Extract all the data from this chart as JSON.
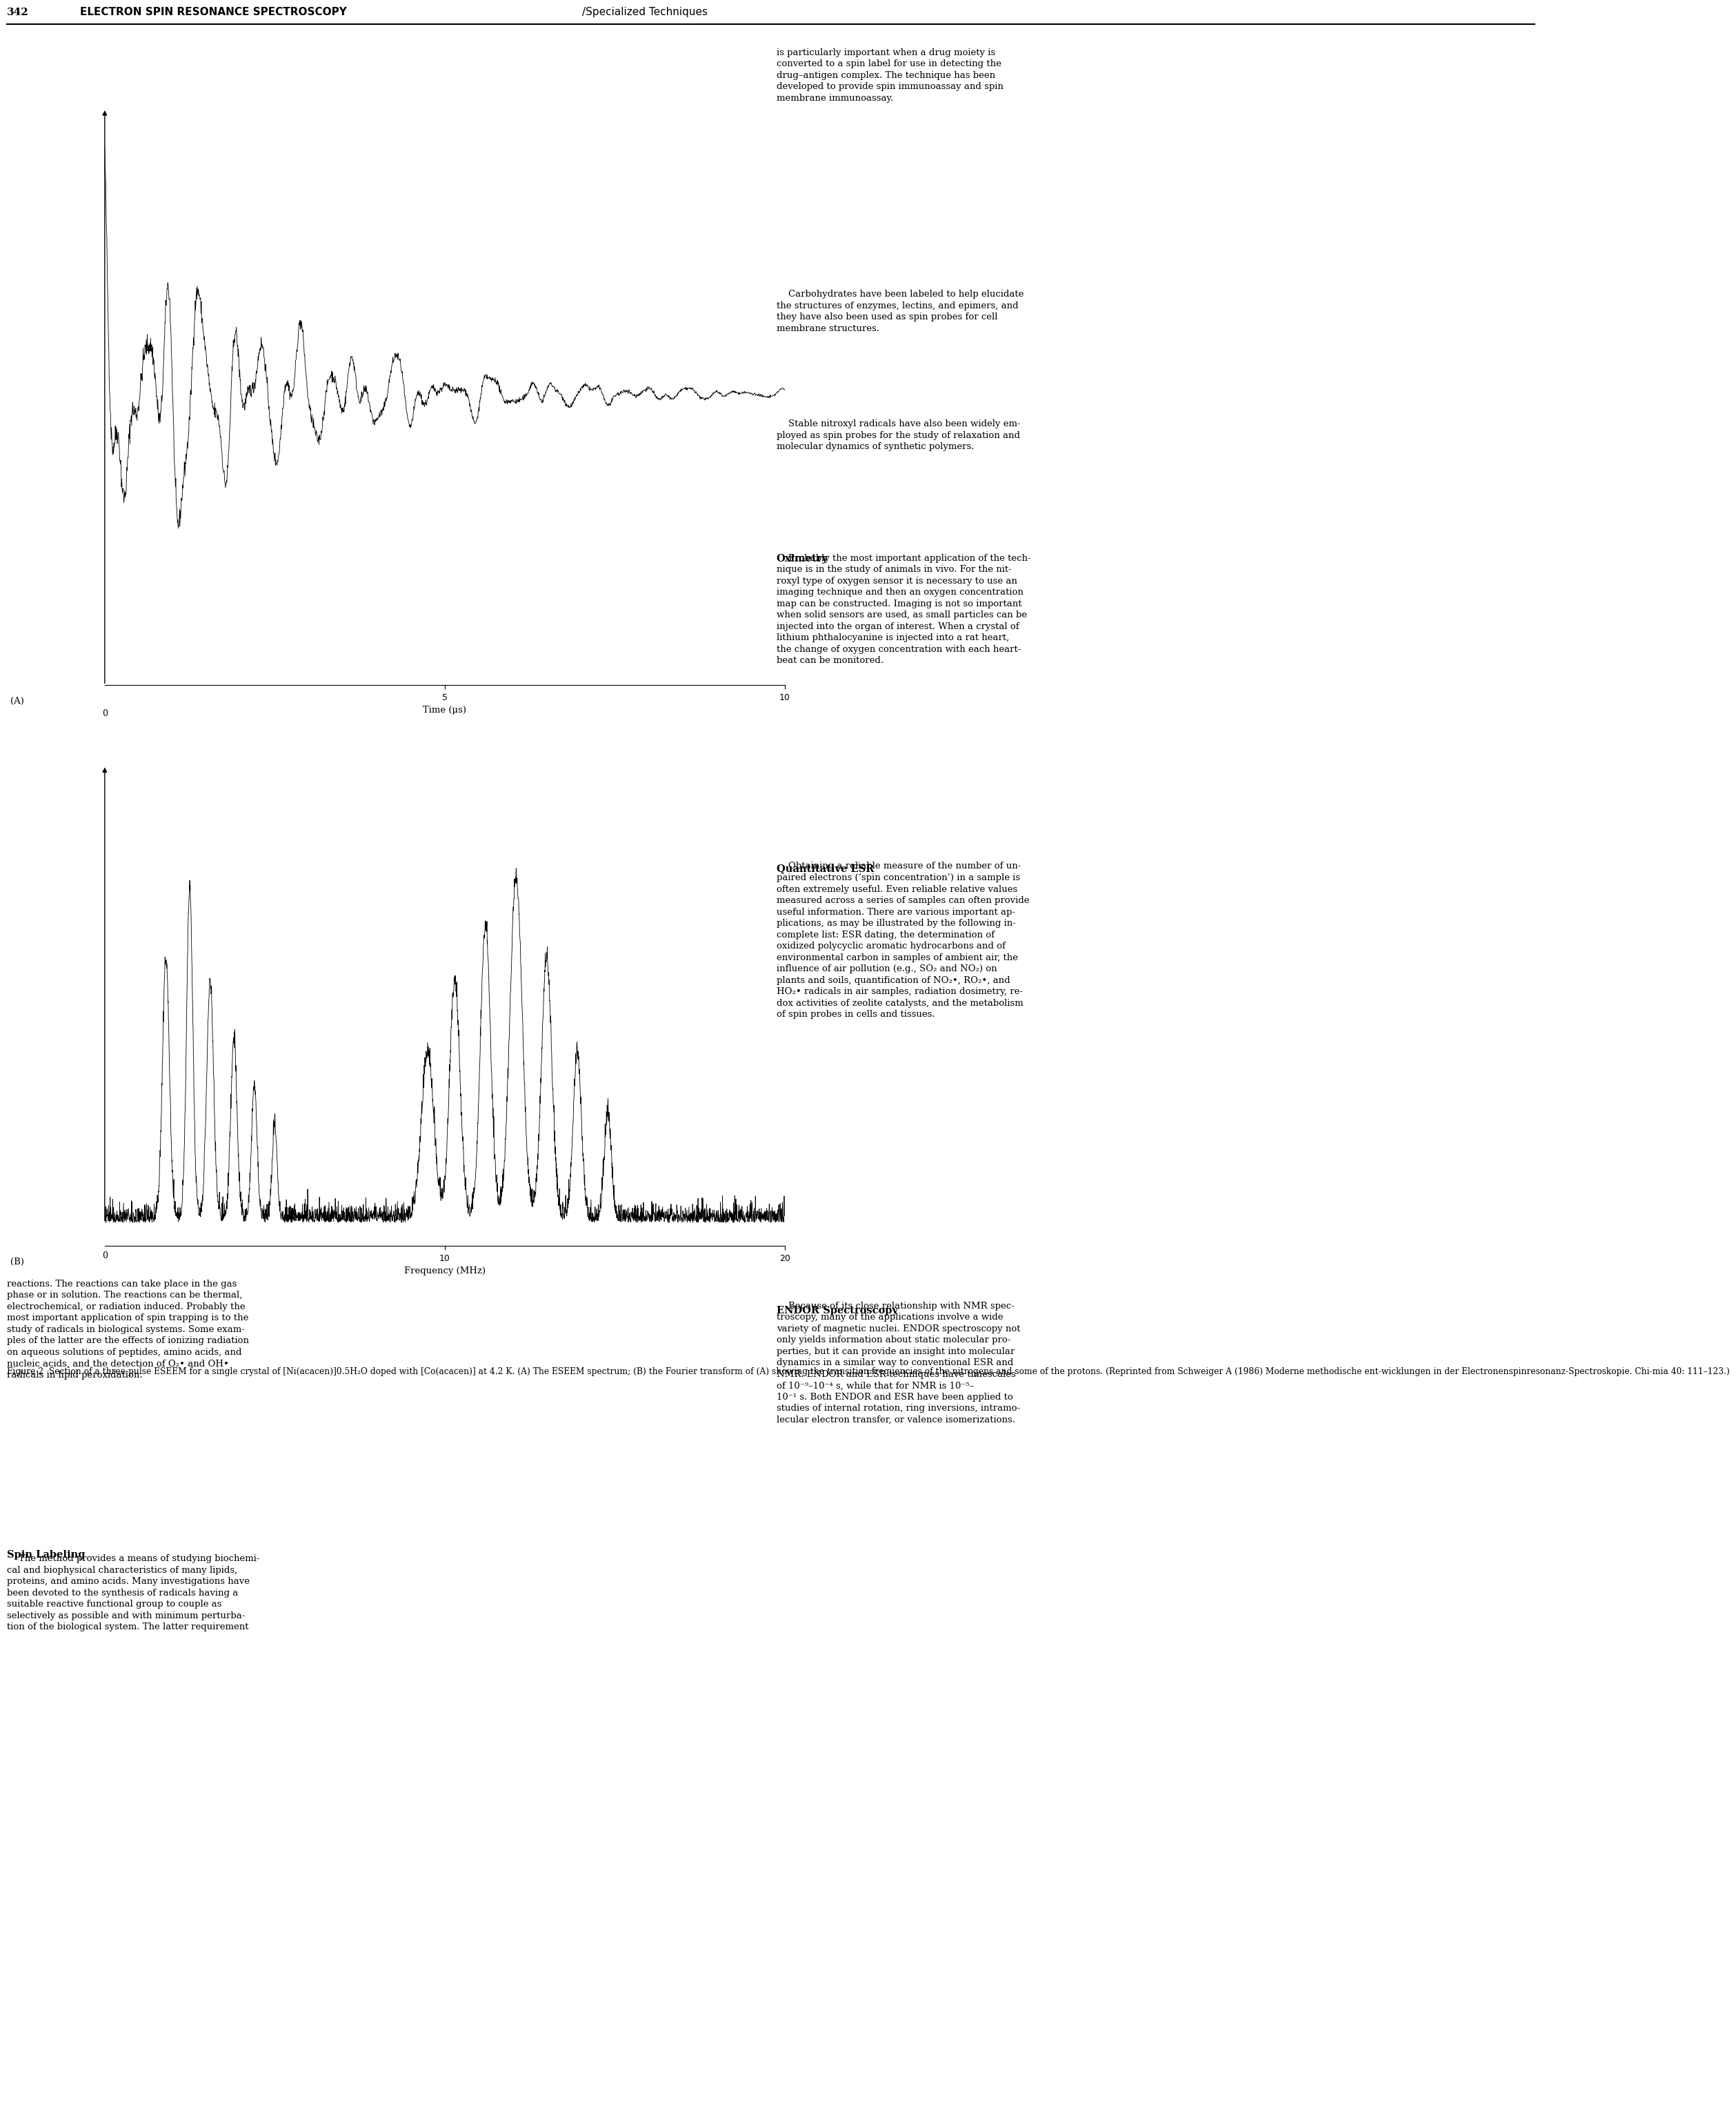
{
  "page_number": "342",
  "header_bold": "ELECTRON SPIN RESONANCE SPECTROSCOPY",
  "header_normal": "/Specialized Techniques",
  "fig_label_A": "(A)",
  "fig_label_B": "(B)",
  "plot_A_xlabel": "Time (μs)",
  "plot_A_xticks": [
    0,
    5,
    10
  ],
  "plot_B_xlabel": "Frequency (MHz)",
  "plot_B_xticks": [
    0,
    10,
    20
  ],
  "caption_bold": "Figure 2",
  "caption_rest": "  Section of a three-pulse ESEEM for a single crystal of [Ni(acacen)]0.5H₂O doped with [Co(acacen)] at 4.2 K. (A) The ESEEM spectrum; (B) the Fourier transform of (A) showing the transition frequencies of the nitrogens and some of the protons. (Reprinted from Schweiger A (1986) Moderne methodische ent-wicklungen in der Electronenspinresonanz-Spectroskopie. Chi-mia 40: 111–123.)",
  "bg_color": "#ffffff",
  "text_color": "#000000",
  "font_size_body": 9.5,
  "font_size_heading": 10.5,
  "font_size_caption": 8.8,
  "font_size_header_num": 11.0,
  "font_size_header_title": 11.0,
  "font_size_axis": 9.5,
  "font_size_tick": 9.0,
  "right_col_text1": "is particularly important when a drug moiety is\nconverted to a spin label for use in detecting the\ndrug–antigen complex. The technique has been\ndeveloped to provide spin immunoassay and spin\nmembrane immunoassay.",
  "right_col_text2": "    Carbohydrates have been labeled to help elucidate\nthe structures of enzymes, lectins, and epimers, and\nthey have also been used as spin probes for cell\nmembrane structures.",
  "right_col_text3": "    Stable nitroxyl radicals have also been widely em-\nployed as spin probes for the study of relaxation and\nmolecular dynamics of synthetic polymers.",
  "right_heading_oximetry": "Oximetry",
  "right_col_text4": "    Probably the most important application of the tech-\nnique is in the study of animals in vivo. For the nit-\nroxyl type of oxygen sensor it is necessary to use an\nimaging technique and then an oxygen concentration\nmap can be constructed. Imaging is not so important\nwhen solid sensors are used, as small particles can be\ninjected into the organ of interest. When a crystal of\nlithium phthalocyanine is injected into a rat heart,\nthe change of oxygen concentration with each heart-\nbeat can be monitored.",
  "right_heading_qesr": "Quantitative ESR",
  "right_col_text5": "    Obtaining a reliable measure of the number of un-\npaired electrons (‘spin concentration’) in a sample is\noften extremely useful. Even reliable relative values\nmeasured across a series of samples can often provide\nuseful information. There are various important ap-\nplications, as may be illustrated by the following in-\ncomplete list: ESR dating, the determination of\noxidized polycyclic aromatic hydrocarbons and of\nenvironmental carbon in samples of ambient air, the\ninfluence of air pollution (e.g., SO₂ and NO₂) on\nplants and soils, quantification of NO₂•, RO₂•, and\nHO₂• radicals in air samples, radiation dosimetry, re-\ndox activities of zeolite catalysts, and the metabolism\nof spin probes in cells and tissues.",
  "right_heading_endor": "ENDOR Spectroscopy",
  "right_col_text6": "    Because of its close relationship with NMR spec-\ntroscopy, many of the applications involve a wide\nvariety of magnetic nuclei. ENDOR spectroscopy not\nonly yields information about static molecular pro-\nperties, but it can provide an insight into molecular\ndynamics in a similar way to conventional ESR and\nNMR. ENDOR and ESR techniques have timescales\nof 10⁻⁹–10⁻⁴ s, while that for NMR is 10⁻⁵–\n10⁻¹ s. Both ENDOR and ESR have been applied to\nstudies of internal rotation, ring inversions, intramo-\nlecular electron transfer, or valence isomerizations.",
  "left_col_reactions": "reactions. The reactions can take place in the gas\nphase or in solution. The reactions can be thermal,\nelectrochemical, or radiation induced. Probably the\nmost important application of spin trapping is to the\nstudy of radicals in biological systems. Some exam-\nples of the latter are the effects of ionizing radiation\non aqueous solutions of peptides, amino acids, and\nnucleic acids, and the detection of O₂• and OH•\nradicals in lipid peroxidation.",
  "left_heading_spin": "Spin Labeling",
  "left_col_spin": "    The method provides a means of studying biochemi-\ncal and biophysical characteristics of many lipids,\nproteins, and amino acids. Many investigations have\nbeen devoted to the synthesis of radicals having a\nsuitable reactive functional group to couple as\nselectively as possible and with minimum perturba-\ntion of the biological system. The latter requirement"
}
